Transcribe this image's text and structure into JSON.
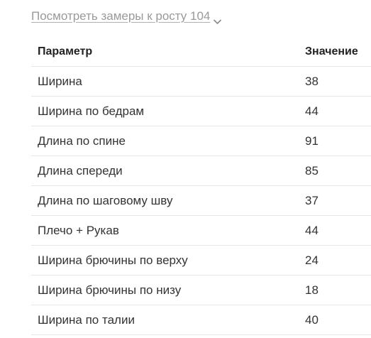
{
  "measurements_toggle": {
    "label": "Посмотреть замеры к росту 104",
    "icon": "chevron-down-icon"
  },
  "table": {
    "headers": {
      "param": "Параметр",
      "value": "Значение"
    },
    "rows": [
      {
        "param": "Ширина",
        "value": "38"
      },
      {
        "param": "Ширина по бедрам",
        "value": "44"
      },
      {
        "param": "Длина по спине",
        "value": "91"
      },
      {
        "param": "Длина спереди",
        "value": "85"
      },
      {
        "param": "Длина по шаговому шву",
        "value": "37"
      },
      {
        "param": "Плечо + Рукав",
        "value": "44"
      },
      {
        "param": "Ширина брючины по верху",
        "value": "24"
      },
      {
        "param": "Ширина брючины по низу",
        "value": "18"
      },
      {
        "param": "Ширина по талии",
        "value": "40"
      }
    ]
  }
}
